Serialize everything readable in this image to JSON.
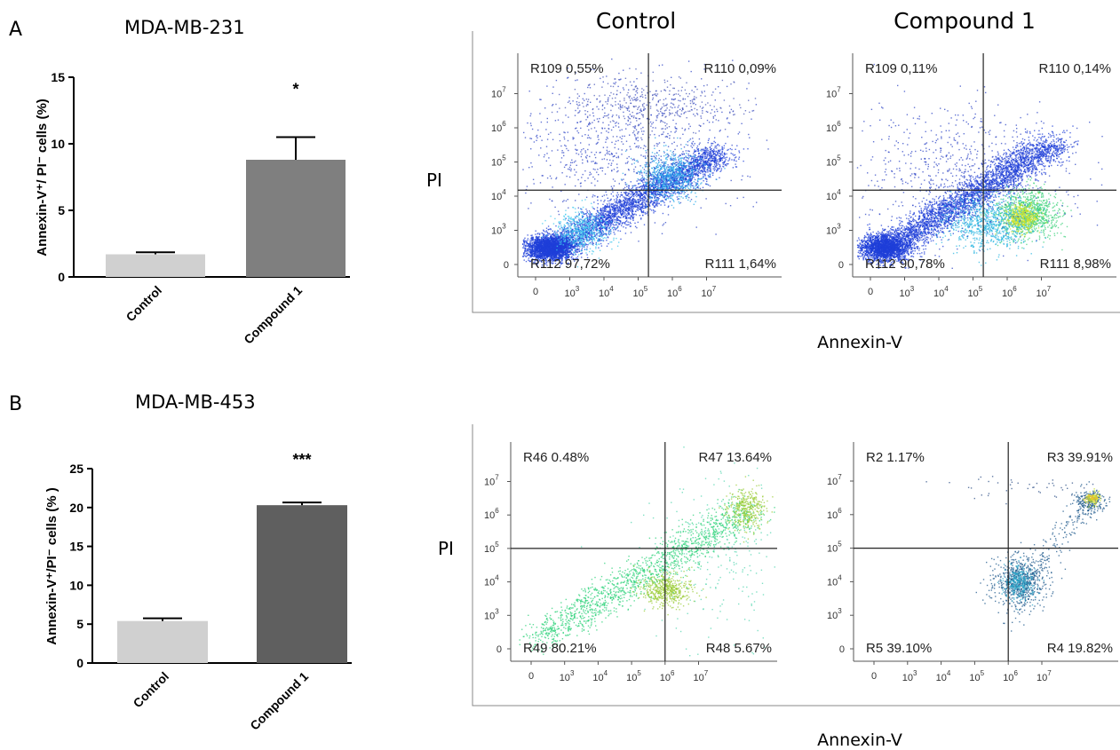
{
  "panels": [
    {
      "letter": "A",
      "cell_line": "MDA-MB-231"
    },
    {
      "letter": "B",
      "cell_line": "MDA-MB-453"
    }
  ],
  "flow_headers": {
    "left": "Control",
    "right": "Compound 1"
  },
  "flow_y_label": "PI",
  "flow_x_label": "Annexin-V",
  "colors": {
    "control_bar": "#d0d0d0",
    "compoundA_bar": "#7f7f7f",
    "compoundB_bar": "#5f5f5f",
    "axis": "#000000",
    "dot_dense_blue": "#1f3fd8",
    "dot_green": "#2dd27a",
    "dot_yellow": "#e6e23a"
  },
  "chart_data": [
    {
      "type": "bar",
      "panel": "A",
      "title": "MDA-MB-231",
      "categories": [
        "Control",
        "Compound 1"
      ],
      "values": [
        1.7,
        8.8
      ],
      "error": [
        0.15,
        1.7
      ],
      "significance": [
        "",
        "*"
      ],
      "ylabel": "Annexin-V⁺/ PI⁻ cells (%)",
      "ylim": [
        0,
        15
      ],
      "yticks": [
        "0",
        "5",
        "10",
        "15"
      ]
    },
    {
      "type": "bar",
      "panel": "B",
      "title": "MDA-MB-453",
      "categories": [
        "Control",
        "Compound 1"
      ],
      "values": [
        5.4,
        20.3
      ],
      "error": [
        0.35,
        0.35
      ],
      "significance": [
        "",
        "***"
      ],
      "ylabel": "Annexin-V⁺/PI⁻ cells (% )",
      "ylim": [
        0,
        25
      ],
      "yticks": [
        "0",
        "5",
        "10",
        "15",
        "20",
        "25"
      ]
    },
    {
      "type": "scatter",
      "panel": "A",
      "condition": "Control",
      "scale": "log",
      "xlabel": "Annexin-V",
      "ylabel": "PI",
      "x_gate": 200000,
      "y_gate": 15000,
      "quadrants": {
        "upper_left": "R109 0,55%",
        "upper_right": "R110 0,09%",
        "lower_left": "R112 97,72%",
        "lower_right": "R111 1,64%"
      }
    },
    {
      "type": "scatter",
      "panel": "A",
      "condition": "Compound 1",
      "scale": "log",
      "xlabel": "Annexin-V",
      "ylabel": "PI",
      "x_gate": 200000,
      "y_gate": 15000,
      "quadrants": {
        "upper_left": "R109 0,11%",
        "upper_right": "R110 0,14%",
        "lower_left": "R112 90,78%",
        "lower_right": "R111 8,98%"
      }
    },
    {
      "type": "scatter",
      "panel": "B",
      "condition": "Control",
      "scale": "log",
      "xlabel": "Annexin-V",
      "ylabel": "PI",
      "x_gate": 1000000,
      "y_gate": 100000,
      "quadrants": {
        "upper_left": "R46 0.48%",
        "upper_right": "R47 13.64%",
        "lower_left": "R49 80.21%",
        "lower_right": "R48 5.67%"
      }
    },
    {
      "type": "scatter",
      "panel": "B",
      "condition": "Compound 1",
      "scale": "log",
      "xlabel": "Annexin-V",
      "ylabel": "PI",
      "x_gate": 1000000,
      "y_gate": 100000,
      "quadrants": {
        "upper_left": "R2 1.17%",
        "upper_right": "R3 39.91%",
        "lower_left": "R5 39.10%",
        "lower_right": "R4 19.82%"
      }
    }
  ]
}
